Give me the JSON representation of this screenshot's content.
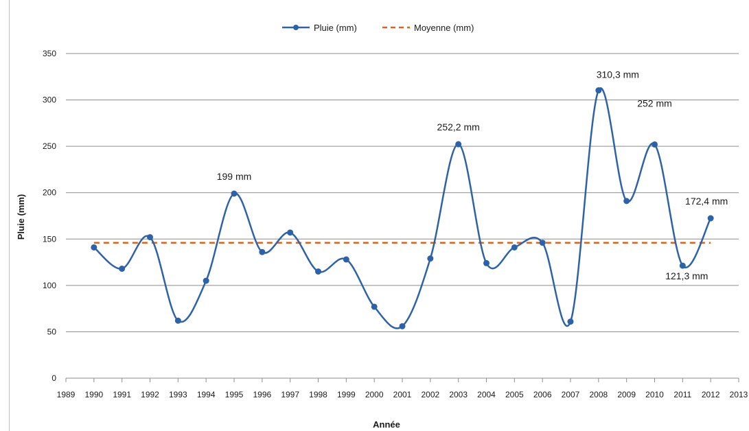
{
  "chart_data": {
    "type": "line",
    "title": "",
    "xlabel": "Année",
    "ylabel": "Pluie (mm)",
    "ylim": [
      0,
      350
    ],
    "yticks": [
      0,
      50,
      100,
      150,
      200,
      250,
      300,
      350
    ],
    "xlim": [
      1989,
      2013
    ],
    "xticks": [
      1989,
      1990,
      1991,
      1992,
      1993,
      1994,
      1995,
      1996,
      1997,
      1998,
      1999,
      2000,
      2001,
      2002,
      2003,
      2004,
      2005,
      2006,
      2007,
      2008,
      2009,
      2010,
      2011,
      2012,
      2013
    ],
    "grid": true,
    "legend_position": "top-center",
    "series": [
      {
        "name": "Pluie (mm)",
        "color": "#2e62a8",
        "style": "smooth line with circular markers",
        "x": [
          1990,
          1991,
          1992,
          1993,
          1994,
          1995,
          1996,
          1997,
          1998,
          1999,
          2000,
          2001,
          2002,
          2003,
          2004,
          2005,
          2006,
          2007,
          2008,
          2009,
          2010,
          2011,
          2012
        ],
        "values": [
          141,
          118,
          152,
          62,
          105,
          199,
          136,
          157,
          115,
          128,
          77,
          56,
          129,
          252.2,
          124,
          141,
          146,
          61,
          310.3,
          191,
          252,
          121.3,
          172.4
        ]
      },
      {
        "name": "Moyenne (mm)",
        "color": "#e0621b",
        "style": "dashed",
        "x": [
          1990,
          2012
        ],
        "values": [
          146,
          146
        ]
      }
    ],
    "annotations": [
      {
        "x": 1995,
        "text": "199 mm"
      },
      {
        "x": 2003,
        "text": "252,2 mm"
      },
      {
        "x": 2008,
        "text": "310,3 mm"
      },
      {
        "x": 2010,
        "text": "252 mm"
      },
      {
        "x": 2011,
        "text": "121,3 mm"
      },
      {
        "x": 2012,
        "text": "172,4 mm"
      }
    ]
  }
}
